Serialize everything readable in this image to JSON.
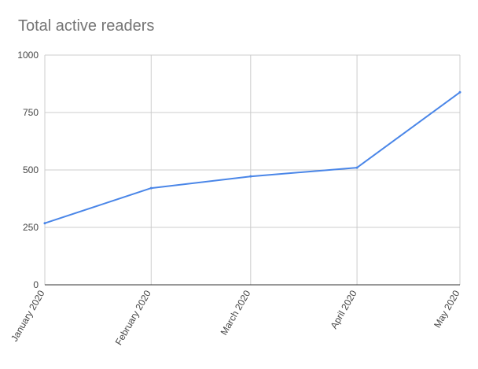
{
  "chart_data": {
    "type": "line",
    "title": "Total active readers",
    "xlabel": "",
    "ylabel": "",
    "categories": [
      "January 2020",
      "February 2020",
      "March 2020",
      "April 2020",
      "May 2020"
    ],
    "x_dates": [
      "2020-01-01",
      "2020-02-01",
      "2020-03-01",
      "2020-04-01",
      "2020-05-01"
    ],
    "series": [
      {
        "values": [
          268,
          421,
          472,
          510,
          838
        ]
      }
    ],
    "ylim": [
      0,
      1000
    ],
    "yticks": [
      "0",
      "250",
      "500",
      "750",
      "1000"
    ],
    "grid": true,
    "legend": "none",
    "colors": {
      "line": "#4a86e8",
      "grid": "#cccccc",
      "axis": "#333333",
      "title": "#757575",
      "tick_text": "#444444"
    }
  }
}
